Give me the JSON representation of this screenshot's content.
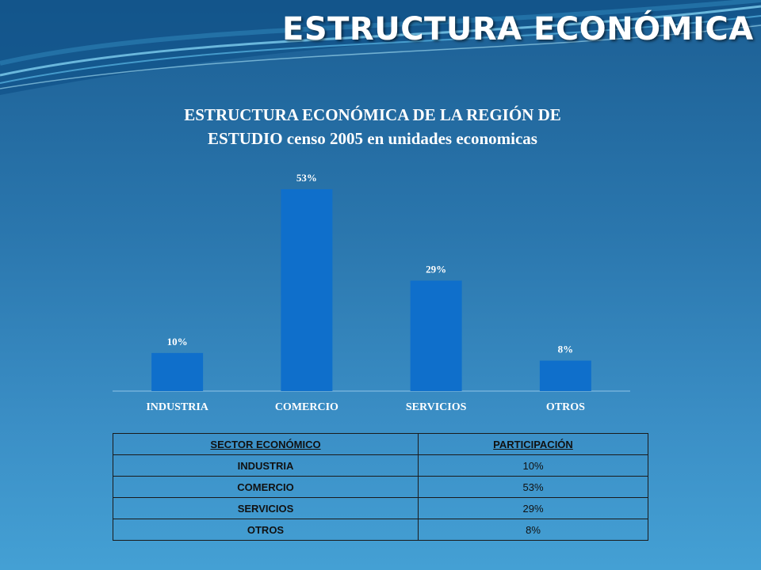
{
  "slide": {
    "title": "ESTRUCTURA ECONÓMICA"
  },
  "chart_data": {
    "type": "bar",
    "title": "ESTRUCTURA ECONÓMICA DE LA REGIÓN DE ESTUDIO censo 2005 en unidades economicas",
    "title_lines": [
      "ESTRUCTURA ECONÓMICA DE LA REGIÓN DE",
      "ESTUDIO censo 2005 en unidades economicas"
    ],
    "categories": [
      "INDUSTRIA",
      "COMERCIO",
      "SERVICIOS",
      "OTROS"
    ],
    "values": [
      10,
      53,
      29,
      8
    ],
    "value_labels": [
      "10%",
      "53%",
      "29%",
      "8%"
    ],
    "ylim": [
      0,
      53
    ],
    "grid": false,
    "legend": "none",
    "bar_color": "#0f6fcb"
  },
  "table": {
    "headers": [
      "SECTOR ECONÓMICO",
      "PARTICIPACIÓN"
    ],
    "rows": [
      [
        "INDUSTRIA",
        "10%"
      ],
      [
        "COMERCIO",
        "53%"
      ],
      [
        "SERVICIOS",
        "29%"
      ],
      [
        "OTROS",
        "8%"
      ]
    ]
  }
}
